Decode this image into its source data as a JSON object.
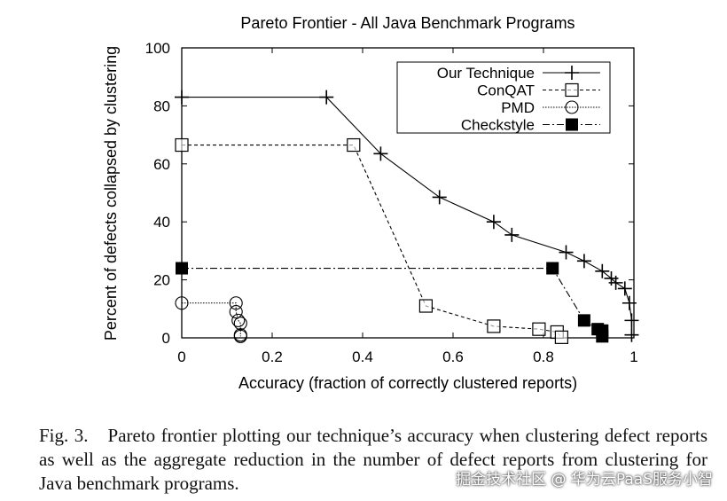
{
  "chart_data": {
    "type": "line",
    "title": "Pareto Frontier - All Java Benchmark Programs",
    "xlabel": "Accuracy (fraction of correctly clustered reports)",
    "ylabel": "Percent of defects collapsed by clustering",
    "xlim": [
      0,
      1
    ],
    "ylim": [
      0,
      100
    ],
    "xticks": [
      "0",
      "0.2",
      "0.4",
      "0.6",
      "0.8",
      "1"
    ],
    "yticks": [
      "0",
      "20",
      "40",
      "60",
      "80",
      "100"
    ],
    "grid": false,
    "legend_position": "top-right",
    "series": [
      {
        "name": "Our Technique",
        "marker": "plus",
        "dash": "",
        "points": [
          [
            0,
            83
          ],
          [
            0.32,
            83
          ],
          [
            0.44,
            63.5
          ],
          [
            0.57,
            48.5
          ],
          [
            0.69,
            40
          ],
          [
            0.73,
            35.5
          ],
          [
            0.85,
            29.5
          ],
          [
            0.89,
            26.5
          ],
          [
            0.93,
            23
          ],
          [
            0.95,
            20.5
          ],
          [
            0.96,
            19
          ],
          [
            0.98,
            17
          ],
          [
            0.99,
            12
          ],
          [
            0.995,
            6
          ],
          [
            0.995,
            1
          ]
        ]
      },
      {
        "name": "ConQAT",
        "marker": "open-square",
        "dash": "4,3",
        "points": [
          [
            0,
            66.5
          ],
          [
            0.38,
            66.5
          ],
          [
            0.54,
            11
          ],
          [
            0.69,
            4
          ],
          [
            0.79,
            3
          ],
          [
            0.83,
            2
          ],
          [
            0.84,
            0.2
          ]
        ]
      },
      {
        "name": "PMD",
        "marker": "open-circle",
        "dash": "1.5,1.5",
        "points": [
          [
            0,
            12
          ],
          [
            0.12,
            12
          ],
          [
            0.12,
            9
          ],
          [
            0.125,
            6
          ],
          [
            0.13,
            5
          ],
          [
            0.13,
            1
          ],
          [
            0.13,
            0.5
          ]
        ]
      },
      {
        "name": "Checkstyle",
        "marker": "filled-square",
        "dash": "8,3,2,3",
        "points": [
          [
            0,
            24
          ],
          [
            0.82,
            24
          ],
          [
            0.89,
            6
          ],
          [
            0.92,
            3
          ],
          [
            0.93,
            2.5
          ],
          [
            0.93,
            0.5
          ]
        ]
      }
    ]
  },
  "caption": {
    "label": "Fig. 3.",
    "text": "Pareto frontier plotting our technique’s accuracy when clustering defect reports as well as the aggregate reduction in the number of defect reports from clustering for Java benchmark programs."
  },
  "watermark": "掘金技术社区 @ 华为云PaaS服务小智"
}
